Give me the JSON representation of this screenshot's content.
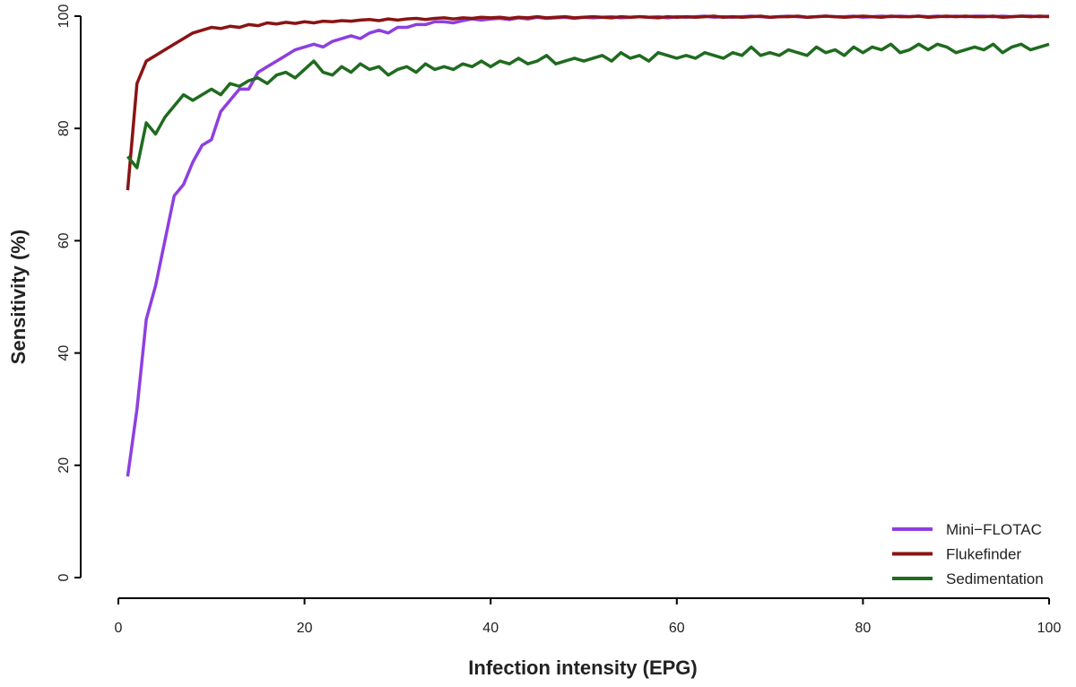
{
  "chart_data": {
    "type": "line",
    "x_label": "Infection intensity (EPG)",
    "y_label": "Sensitivity (%)",
    "x": [
      1,
      2,
      3,
      4,
      5,
      6,
      7,
      8,
      9,
      10,
      11,
      12,
      13,
      14,
      15,
      16,
      17,
      18,
      19,
      20,
      21,
      22,
      23,
      24,
      25,
      26,
      27,
      28,
      29,
      30,
      31,
      32,
      33,
      34,
      35,
      36,
      37,
      38,
      39,
      40,
      41,
      42,
      43,
      44,
      45,
      46,
      47,
      48,
      49,
      50,
      51,
      52,
      53,
      54,
      55,
      56,
      57,
      58,
      59,
      60,
      61,
      62,
      63,
      64,
      65,
      66,
      67,
      68,
      69,
      70,
      71,
      72,
      73,
      74,
      75,
      76,
      77,
      78,
      79,
      80,
      81,
      82,
      83,
      84,
      85,
      86,
      87,
      88,
      89,
      90,
      91,
      92,
      93,
      94,
      95,
      96,
      97,
      98,
      99,
      100
    ],
    "series": [
      {
        "name": "Mini−FLOTAC",
        "color": "#8e3fe0",
        "values": [
          18,
          30,
          46,
          52,
          60,
          68,
          70,
          74,
          77,
          78,
          83,
          85,
          87,
          87,
          90,
          91,
          92,
          93,
          94,
          94.5,
          95,
          94.5,
          95.5,
          96,
          96.5,
          96,
          97,
          97.5,
          97,
          98,
          98,
          98.5,
          98.5,
          99,
          99,
          98.8,
          99.2,
          99.5,
          99.3,
          99.5,
          99.6,
          99.4,
          99.7,
          99.5,
          99.8,
          99.6,
          99.7,
          99.8,
          99.6,
          99.8,
          99.7,
          99.8,
          99.9,
          99.7,
          99.8,
          99.9,
          99.8,
          99.9,
          99.7,
          99.9,
          99.8,
          99.9,
          100,
          99.8,
          99.9,
          99.8,
          99.9,
          100,
          99.9,
          99.8,
          99.9,
          100,
          99.9,
          99.8,
          99.9,
          100,
          99.9,
          99.9,
          100,
          99.8,
          99.9,
          100,
          99.9,
          100,
          99.9,
          100,
          99.9,
          100,
          99.9,
          100,
          99.9,
          100,
          100,
          99.9,
          100,
          99.9,
          100,
          100,
          99.9,
          100
        ]
      },
      {
        "name": "Flukefinder",
        "color": "#8b1414",
        "values": [
          69,
          88,
          92,
          93,
          94,
          95,
          96,
          97,
          97.5,
          98,
          97.8,
          98.2,
          98,
          98.5,
          98.3,
          98.8,
          98.6,
          98.9,
          98.7,
          99,
          98.8,
          99.1,
          99,
          99.2,
          99.1,
          99.3,
          99.4,
          99.2,
          99.5,
          99.3,
          99.5,
          99.6,
          99.4,
          99.6,
          99.7,
          99.5,
          99.7,
          99.6,
          99.8,
          99.7,
          99.8,
          99.6,
          99.8,
          99.7,
          99.9,
          99.7,
          99.8,
          99.9,
          99.7,
          99.8,
          99.9,
          99.8,
          99.7,
          99.9,
          99.8,
          99.9,
          99.8,
          99.7,
          99.9,
          99.8,
          99.9,
          99.8,
          99.9,
          100,
          99.8,
          99.9,
          99.8,
          99.9,
          100,
          99.8,
          99.9,
          99.9,
          100,
          99.8,
          99.9,
          100,
          99.9,
          99.8,
          99.9,
          100,
          99.9,
          99.8,
          100,
          99.9,
          99.9,
          100,
          99.8,
          99.9,
          100,
          99.9,
          100,
          99.9,
          99.9,
          100,
          99.8,
          99.9,
          100,
          99.9,
          100,
          99.9
        ]
      },
      {
        "name": "Sedimentation",
        "color": "#1f6b1f",
        "values": [
          75,
          73,
          81,
          79,
          82,
          84,
          86,
          85,
          86,
          87,
          86,
          88,
          87.5,
          88.5,
          89,
          88,
          89.5,
          90,
          89,
          90.5,
          92,
          90,
          89.5,
          91,
          90,
          91.5,
          90.5,
          91,
          89.5,
          90.5,
          91,
          90,
          91.5,
          90.5,
          91,
          90.5,
          91.5,
          91,
          92,
          91,
          92,
          91.5,
          92.5,
          91.5,
          92,
          93,
          91.5,
          92,
          92.5,
          92,
          92.5,
          93,
          92,
          93.5,
          92.5,
          93,
          92,
          93.5,
          93,
          92.5,
          93,
          92.5,
          93.5,
          93,
          92.5,
          93.5,
          93,
          94.5,
          93,
          93.5,
          93,
          94,
          93.5,
          93,
          94.5,
          93.5,
          94,
          93,
          94.5,
          93.5,
          94.5,
          94,
          95,
          93.5,
          94,
          95,
          94,
          95,
          94.5,
          93.5,
          94,
          94.5,
          94,
          95,
          93.5,
          94.5,
          95,
          94,
          94.5,
          95
        ]
      }
    ],
    "xlim": [
      0,
      100
    ],
    "ylim": [
      0,
      100
    ],
    "xticks": [
      0,
      20,
      40,
      60,
      80,
      100
    ],
    "yticks": [
      0,
      20,
      40,
      60,
      80,
      100
    ],
    "legend": "bottom-right"
  }
}
